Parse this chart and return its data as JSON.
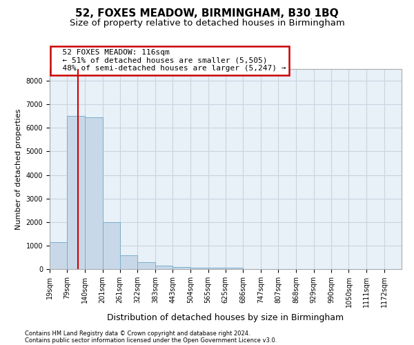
{
  "title": "52, FOXES MEADOW, BIRMINGHAM, B30 1BQ",
  "subtitle": "Size of property relative to detached houses in Birmingham",
  "xlabel": "Distribution of detached houses by size in Birmingham",
  "ylabel": "Number of detached properties",
  "footnote1": "Contains HM Land Registry data © Crown copyright and database right 2024.",
  "footnote2": "Contains public sector information licensed under the Open Government Licence v3.0.",
  "property_label": "52 FOXES MEADOW: 116sqm",
  "annotation_line1": "← 51% of detached houses are smaller (5,505)",
  "annotation_line2": "48% of semi-detached houses are larger (5,247) →",
  "bar_edges": [
    19,
    79,
    140,
    201,
    261,
    322,
    383,
    443,
    504,
    565,
    625,
    686,
    747,
    807,
    868,
    929,
    990,
    1050,
    1111,
    1172,
    1232
  ],
  "bar_heights": [
    1150,
    6500,
    6450,
    2000,
    580,
    300,
    150,
    90,
    60,
    50,
    50,
    0,
    0,
    0,
    0,
    0,
    0,
    0,
    0,
    0
  ],
  "bar_color": "#c8d8e8",
  "bar_edge_color": "#7aaec8",
  "vline_x": 116,
  "vline_color": "#cc0000",
  "annotation_box_color": "#cc0000",
  "ylim": [
    0,
    8500
  ],
  "yticks": [
    0,
    1000,
    2000,
    3000,
    4000,
    5000,
    6000,
    7000,
    8000
  ],
  "grid_color": "#c8d4e0",
  "bg_color": "#e8f0f8",
  "title_fontsize": 11,
  "subtitle_fontsize": 9.5,
  "xlabel_fontsize": 9,
  "ylabel_fontsize": 8,
  "tick_fontsize": 7,
  "annotation_fontsize": 8
}
